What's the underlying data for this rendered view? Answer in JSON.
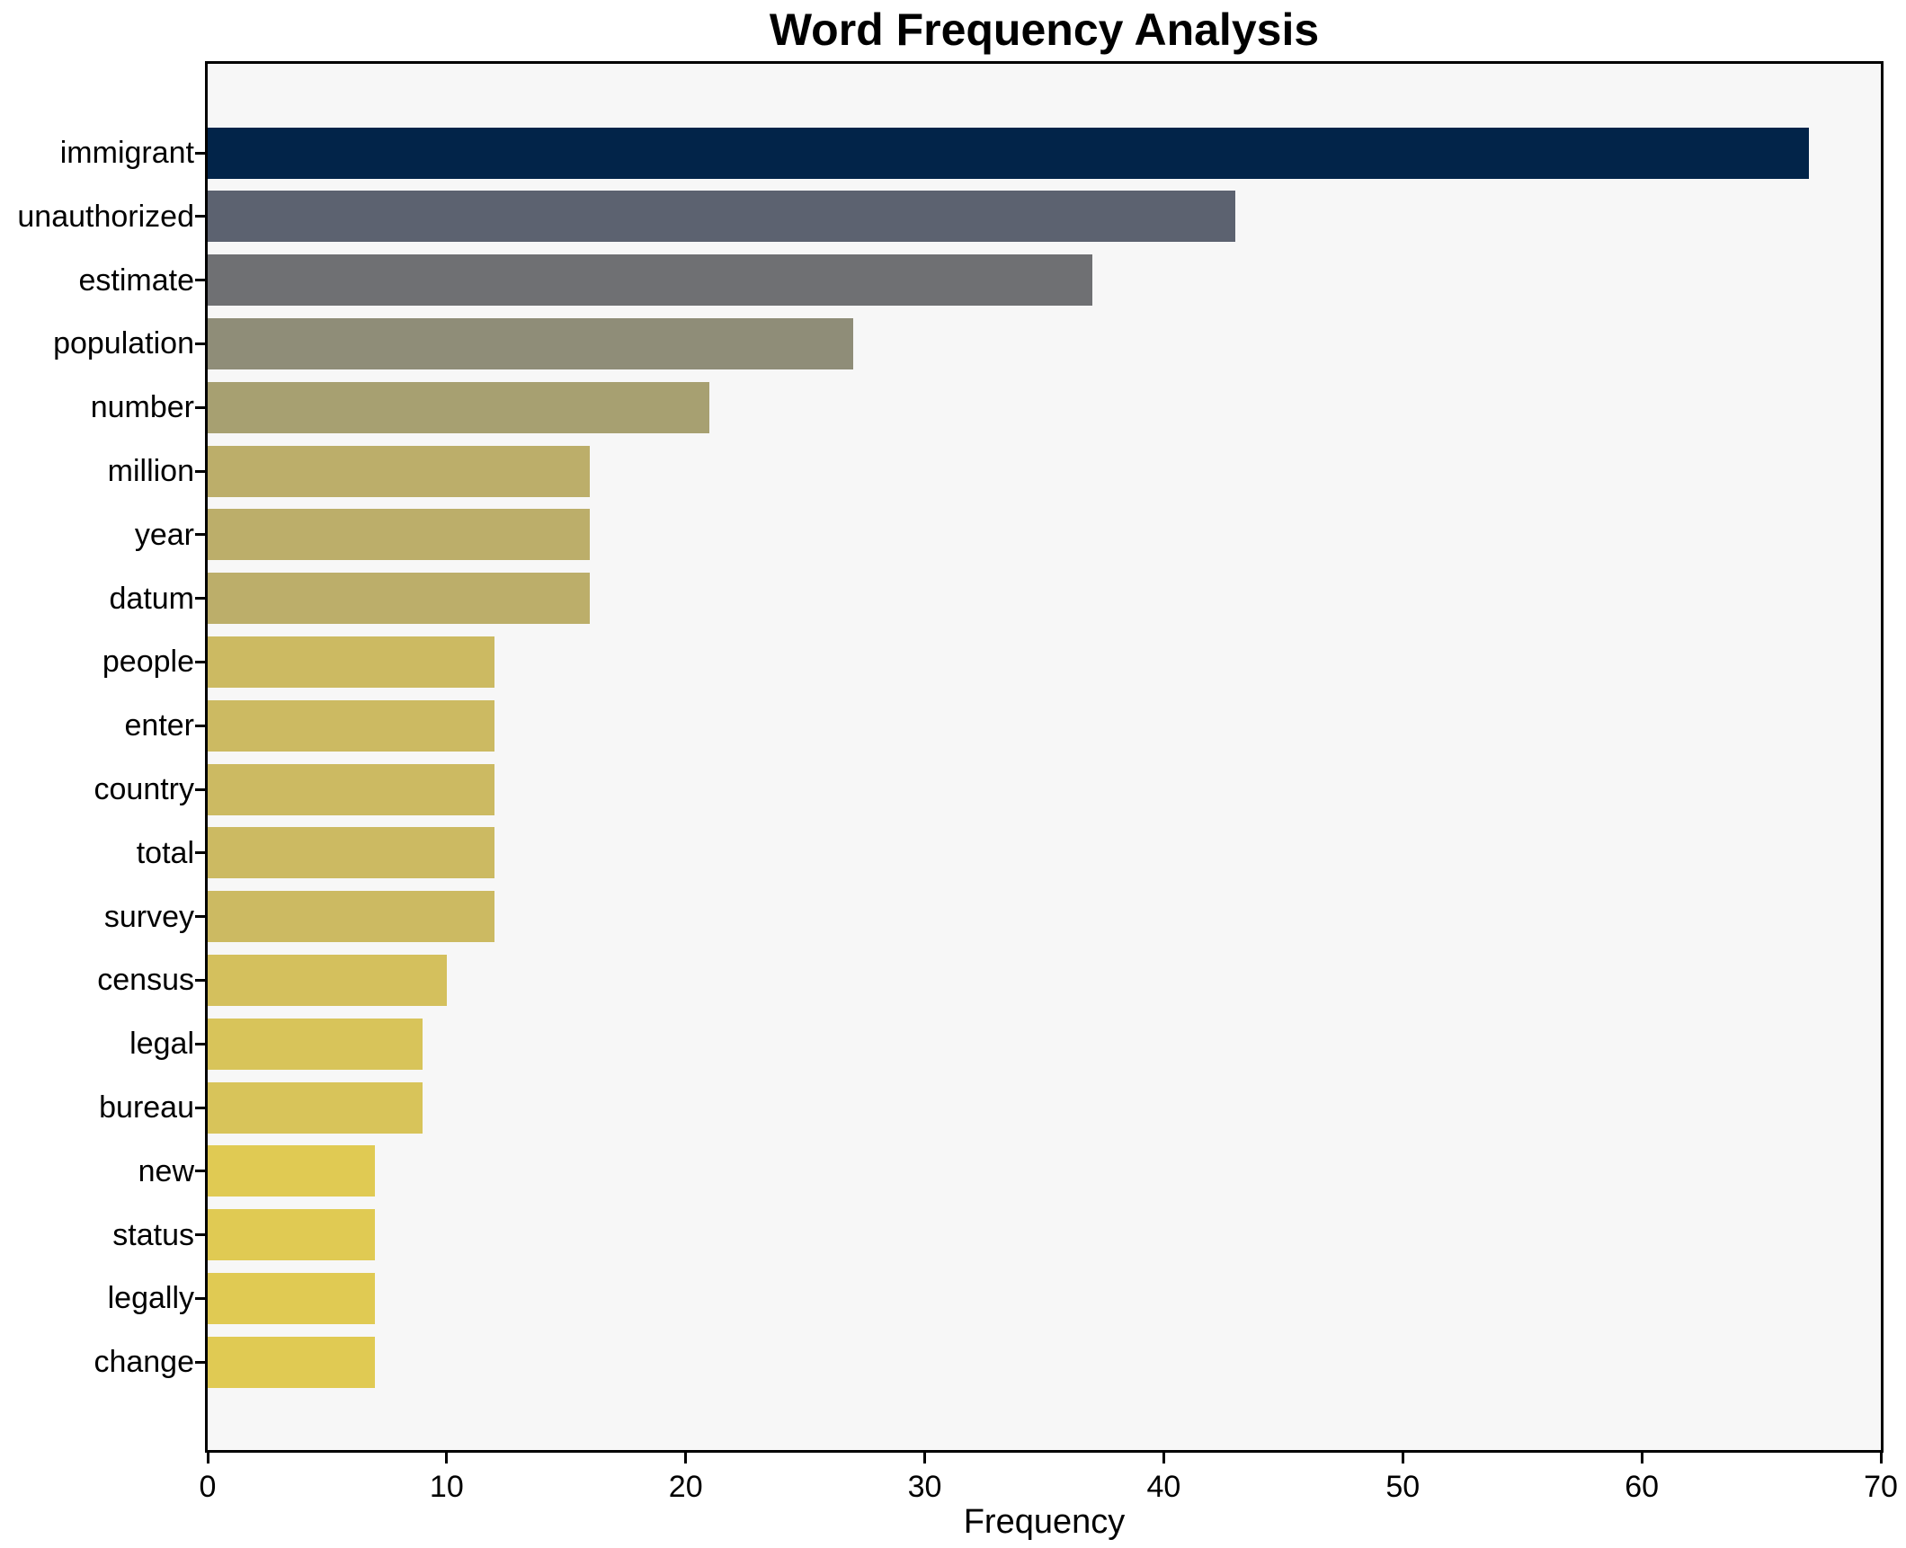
{
  "chart_data": {
    "type": "bar",
    "orientation": "horizontal",
    "title": "Word Frequency Analysis",
    "xlabel": "Frequency",
    "ylabel": "",
    "xlim": [
      0,
      70
    ],
    "x_ticks": [
      0,
      10,
      20,
      30,
      40,
      50,
      60,
      70
    ],
    "grid": false,
    "legend": "none",
    "plot_background": "#f7f7f7",
    "figure_background": "#ffffff",
    "spine_color": "#000000",
    "categories": [
      "immigrant",
      "unauthorized",
      "estimate",
      "population",
      "number",
      "million",
      "year",
      "datum",
      "people",
      "enter",
      "country",
      "total",
      "survey",
      "census",
      "legal",
      "bureau",
      "new",
      "status",
      "legally",
      "change"
    ],
    "values": [
      67,
      43,
      37,
      27,
      21,
      16,
      16,
      16,
      12,
      12,
      12,
      12,
      12,
      10,
      9,
      9,
      7,
      7,
      7,
      7
    ],
    "bar_colors": [
      "#022449",
      "#5c6270",
      "#6f7073",
      "#8f8d78",
      "#a7a071",
      "#bcae6a",
      "#bcae6a",
      "#bcae6a",
      "#ccba62",
      "#ccba62",
      "#ccba62",
      "#ccba62",
      "#ccba62",
      "#d4c05d",
      "#d8c45a",
      "#d8c45a",
      "#e0ca53",
      "#e0ca53",
      "#e0ca53",
      "#e0ca53"
    ]
  }
}
